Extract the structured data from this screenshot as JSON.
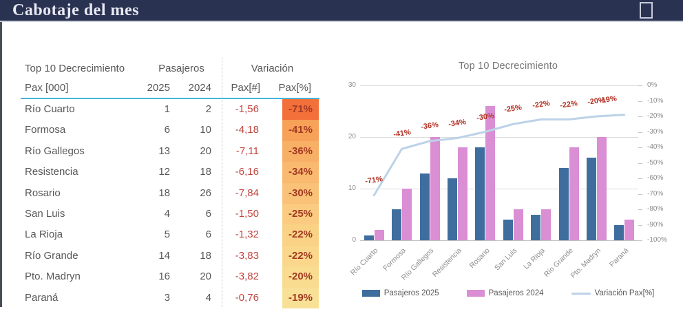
{
  "header": {
    "title": "Cabotaje del mes"
  },
  "colors": {
    "titlebar_bg": "#2A3251",
    "accent_rule": "#45B6D6",
    "negative_number": "#C2453F",
    "pct_text": "#A23A23",
    "bar_2025": "#3F6E9E",
    "bar_2024": "#DA8ED4",
    "variation_line": "#BCD2E8"
  },
  "table": {
    "group_headers": {
      "col1": "Top 10 Decrecimiento",
      "col2": "Pasajeros",
      "col3": "Variación"
    },
    "sub_headers": {
      "name": "Pax [000]",
      "y2025": "2025",
      "y2024": "2024",
      "pax_num": "Pax[#]",
      "pax_pct": "Pax[%]"
    },
    "rows": [
      {
        "name": "Río Cuarto",
        "y2025": "1",
        "y2024": "2",
        "pax_num": "-1,56",
        "pax_pct": "-71%",
        "pct_bg": "#F3703B"
      },
      {
        "name": "Formosa",
        "y2025": "6",
        "y2024": "10",
        "pax_num": "-4,18",
        "pax_pct": "-41%",
        "pct_bg": "#F7A159"
      },
      {
        "name": "Río Gallegos",
        "y2025": "13",
        "y2024": "20",
        "pax_num": "-7,11",
        "pax_pct": "-36%",
        "pct_bg": "#F8AF66"
      },
      {
        "name": "Resistencia",
        "y2025": "12",
        "y2024": "18",
        "pax_num": "-6,16",
        "pax_pct": "-34%",
        "pct_bg": "#F9B96F"
      },
      {
        "name": "Rosario",
        "y2025": "18",
        "y2024": "26",
        "pax_num": "-7,84",
        "pax_pct": "-30%",
        "pct_bg": "#F9C278"
      },
      {
        "name": "San Luis",
        "y2025": "4",
        "y2024": "6",
        "pax_num": "-1,50",
        "pax_pct": "-25%",
        "pct_bg": "#FACB80"
      },
      {
        "name": "La Rioja",
        "y2025": "5",
        "y2024": "6",
        "pax_num": "-1,32",
        "pax_pct": "-22%",
        "pct_bg": "#FAD286"
      },
      {
        "name": "Río Grande",
        "y2025": "14",
        "y2024": "18",
        "pax_num": "-3,83",
        "pax_pct": "-22%",
        "pct_bg": "#FAD78B"
      },
      {
        "name": "Pto. Madryn",
        "y2025": "16",
        "y2024": "20",
        "pax_num": "-3,82",
        "pax_pct": "-20%",
        "pct_bg": "#F9DC90"
      },
      {
        "name": "Paraná",
        "y2025": "3",
        "y2024": "4",
        "pax_num": "-0,76",
        "pax_pct": "-19%",
        "pct_bg": "#F8E096"
      }
    ]
  },
  "chart_data": {
    "type": "bar",
    "subtype": "combo-bar-line-dual-axis",
    "title": "Top 10 Decrecimiento",
    "categories": [
      "Río Cuarto",
      "Formosa",
      "Río Gallegos",
      "Resistencia",
      "Rosario",
      "San Luis",
      "La Rioja",
      "Río Grande",
      "Pto. Madryn",
      "Paraná"
    ],
    "series": [
      {
        "name": "Pasajeros 2025",
        "type": "bar",
        "axis": "left",
        "color": "#3F6E9E",
        "values": [
          1,
          6,
          13,
          12,
          18,
          4,
          5,
          14,
          16,
          3
        ]
      },
      {
        "name": "Pasajeros 2024",
        "type": "bar",
        "axis": "left",
        "color": "#DA8ED4",
        "values": [
          2,
          10,
          20,
          18,
          26,
          6,
          6,
          18,
          20,
          4
        ]
      },
      {
        "name": "Variación Pax[%]",
        "type": "line",
        "axis": "right",
        "color": "#BCD2E8",
        "values": [
          -71,
          -41,
          -36,
          -34,
          -30,
          -25,
          -22,
          -22,
          -20,
          -19
        ],
        "labels": [
          "-71%",
          "-41%",
          "-36%",
          "-34%",
          "-30%",
          "-25%",
          "-22%",
          "-22%",
          "-20%",
          "-19%"
        ]
      }
    ],
    "left_axis": {
      "min": 0,
      "max": 30,
      "ticks": [
        "30",
        "20",
        "10",
        "0"
      ]
    },
    "right_axis": {
      "min": -100,
      "max": 0,
      "ticks": [
        "0%",
        "-10%",
        "-20%",
        "-30%",
        "-40%",
        "-50%",
        "-60%",
        "-70%",
        "-80%",
        "-90%",
        "-100%"
      ]
    },
    "grid": true,
    "legend_position": "bottom",
    "label_color": "#B33226"
  }
}
